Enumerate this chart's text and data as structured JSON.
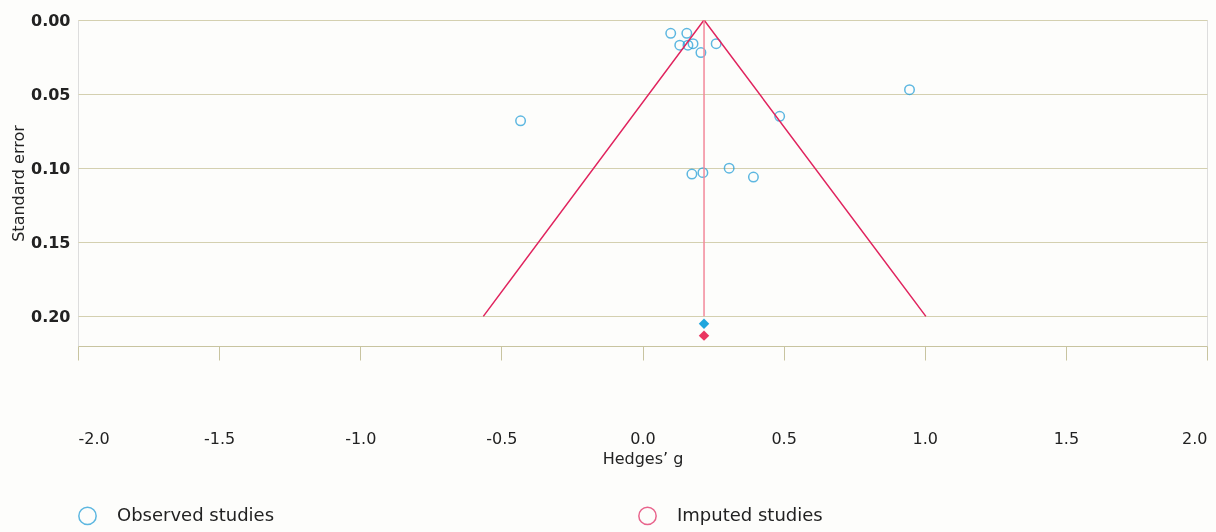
{
  "chart_data": {
    "type": "scatter",
    "xlabel": "Hedges’ g",
    "ylabel": "Standard error",
    "xlim": [
      -2.0,
      2.0
    ],
    "ylim": [
      0.22,
      0.0
    ],
    "xticks": [
      {
        "value": -2,
        "label": "-2.0"
      },
      {
        "value": -1.5,
        "label": "-1.5"
      },
      {
        "value": -1,
        "label": "-1.0"
      },
      {
        "value": -0.5,
        "label": "-0.5"
      },
      {
        "value": 0,
        "label": "0.0"
      },
      {
        "value": 0.5,
        "label": "0.5"
      },
      {
        "value": 1,
        "label": "1.0"
      },
      {
        "value": 1.5,
        "label": "1.5"
      },
      {
        "value": 2,
        "label": "2.0"
      }
    ],
    "yticks": [
      {
        "value": 0,
        "label": "0.00"
      },
      {
        "value": 0.05,
        "label": "0.05"
      },
      {
        "value": 0.1,
        "label": "0.10"
      },
      {
        "value": 0.15,
        "label": "0.15"
      },
      {
        "value": 0.2,
        "label": "0.20"
      }
    ],
    "grid": "y",
    "legend": "bottom",
    "series": [
      {
        "name": "Observed studies",
        "type": "scatter",
        "marker": "circle",
        "color": "#1a9ad6",
        "x": [
          0.1,
          0.157,
          0.132,
          0.161,
          0.179,
          0.261,
          0.207,
          0.946,
          0.486,
          -0.432,
          0.307,
          0.214,
          0.175,
          0.393
        ],
        "values": [
          0.009,
          0.009,
          0.017,
          0.017,
          0.016,
          0.016,
          0.022,
          0.047,
          0.065,
          0.068,
          0.1,
          0.103,
          0.104,
          0.106
        ]
      },
      {
        "name": "Imputed studies",
        "type": "scatter",
        "marker": "circle",
        "color": "#e0245e"
      },
      {
        "type": "line",
        "color": "#e0245e",
        "x": [
          -0.564,
          0.218,
          1.004
        ],
        "values": [
          0.2,
          0.0,
          0.2
        ]
      },
      {
        "type": "line",
        "color": "#f2889a",
        "x": [
          0.218,
          0.218
        ],
        "values": [
          0.0,
          0.2
        ]
      },
      {
        "type": "scatter",
        "marker": "diamond",
        "color": "#1fa6dd",
        "x": [
          0.218
        ],
        "values": [
          0.205
        ]
      },
      {
        "type": "scatter",
        "marker": "diamond",
        "color": "#ea3560",
        "x": [
          0.218
        ],
        "values": [
          0.213
        ]
      }
    ]
  }
}
